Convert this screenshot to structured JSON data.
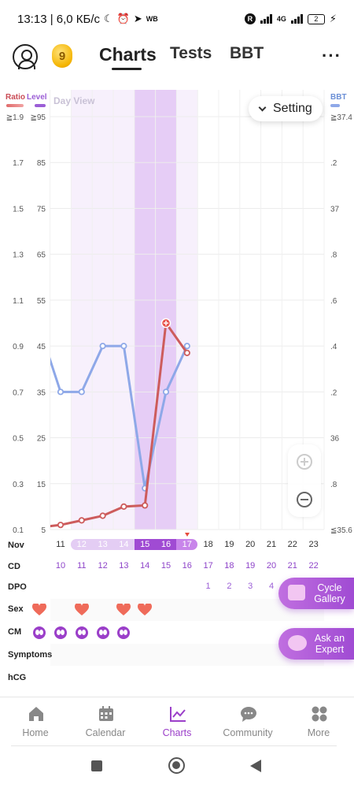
{
  "status_bar": {
    "time_speed": "13:13 | 6,0 КБ/с",
    "network_label": "4G",
    "misc_label": "WB",
    "vpn_badge": "R",
    "battery": "2"
  },
  "header": {
    "level": "9",
    "tabs": [
      "Charts",
      "Tests",
      "BBT"
    ],
    "active_tab": "Charts",
    "more": "···"
  },
  "chart": {
    "legend": {
      "ratio": "Ratio",
      "level": "Level",
      "bbt": "BBT"
    },
    "view_label": "Day View",
    "setting_label": "Setting"
  },
  "rows": {
    "labels": {
      "nov": "Nov",
      "cd": "CD",
      "dpo": "DPO",
      "sex": "Sex",
      "cm": "CM",
      "symptoms": "Symptoms",
      "hcg": "hCG"
    },
    "dates": [
      "11",
      "12",
      "13",
      "14",
      "15",
      "16",
      "17",
      "18",
      "19",
      "20",
      "21",
      "22",
      "23"
    ],
    "cd": [
      "10",
      "11",
      "12",
      "13",
      "14",
      "15",
      "16",
      "17",
      "18",
      "19",
      "20",
      "21",
      "22"
    ],
    "dpo": [
      null,
      null,
      null,
      null,
      null,
      null,
      null,
      "1",
      "2",
      "3",
      "4",
      null,
      null
    ],
    "sex_days": [
      "11",
      "13",
      "15",
      "16"
    ],
    "cm_days": [
      "11",
      "12",
      "13",
      "14",
      "15"
    ]
  },
  "buttons": {
    "cycle_gallery": "Cycle Gallery",
    "ask_expert": "Ask an Expert"
  },
  "bottom_nav": [
    {
      "label": "Home",
      "icon": "home-icon"
    },
    {
      "label": "Calendar",
      "icon": "calendar-icon"
    },
    {
      "label": "Charts",
      "icon": "charts-icon",
      "active": true
    },
    {
      "label": "Community",
      "icon": "community-icon"
    },
    {
      "label": "More",
      "icon": "more-grid-icon"
    }
  ],
  "colors": {
    "ratio_line": "#cd5c5c",
    "bbt_line": "#8ea8e8",
    "level_band": "#e3c9f5",
    "accent": "#9b3fc9"
  },
  "chart_data": {
    "type": "line",
    "x": [
      "11",
      "12",
      "13",
      "14",
      "15",
      "16",
      "17"
    ],
    "x_month": "Nov",
    "highlighted_days": [
      "12",
      "13",
      "14",
      "15",
      "16",
      "17"
    ],
    "fertile_window_days": [
      "15",
      "16"
    ],
    "left_axis_ratio": {
      "label": "Ratio",
      "ticks": [
        "0.1",
        "0.3",
        "0.5",
        "0.7",
        "0.9",
        "1.1",
        "1.3",
        "1.5",
        "1.7",
        "≧1.9"
      ],
      "ylim": [
        0.1,
        1.9
      ]
    },
    "left_axis_level": {
      "label": "Level",
      "ticks": [
        "5",
        "15",
        "25",
        "35",
        "45",
        "55",
        "65",
        "75",
        "85",
        "≧95"
      ],
      "ylim": [
        5,
        95
      ]
    },
    "right_axis_bbt": {
      "label": "BBT",
      "ticks": [
        "≦35.6",
        ".8",
        "36",
        ".2",
        ".4",
        ".6",
        ".8",
        "37",
        ".2",
        "≧37.4"
      ],
      "ylim": [
        35.6,
        37.4
      ]
    },
    "series": [
      {
        "name": "Ratio",
        "axis": "ratio",
        "x": [
          "10",
          "11",
          "12",
          "13",
          "14",
          "15",
          "16",
          "17"
        ],
        "values": [
          0.11,
          0.12,
          0.14,
          0.16,
          0.2,
          0.205,
          1.0,
          0.87
        ]
      },
      {
        "name": "BBT",
        "axis": "bbt",
        "x": [
          "10",
          "11",
          "12",
          "13",
          "14",
          "15",
          "16",
          "17"
        ],
        "values": [
          36.48,
          36.2,
          36.2,
          36.4,
          36.4,
          35.78,
          36.2,
          36.4
        ]
      }
    ],
    "grid": true
  }
}
